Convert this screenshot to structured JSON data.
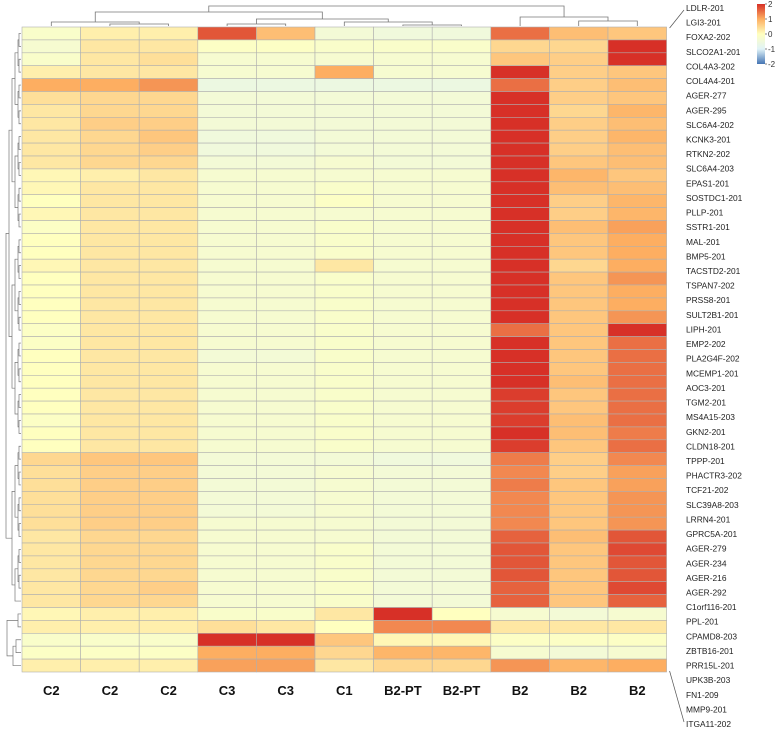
{
  "chart_data": {
    "type": "heatmap",
    "title": "",
    "columns": [
      "C2",
      "C2",
      "C2",
      "C3",
      "C3",
      "C1",
      "B2-PT",
      "B2-PT",
      "B2",
      "B2",
      "B2"
    ],
    "rows": [
      "LDLR-201",
      "LGI3-201",
      "FOXA2-202",
      "SLCO2A1-201",
      "COL4A3-202",
      "COL4A4-201",
      "AGER-277",
      "AGER-295",
      "SLC6A4-202",
      "KCNK3-201",
      "RTKN2-202",
      "SLC6A4-203",
      "EPAS1-201",
      "SOSTDC1-201",
      "PLLP-201",
      "SSTR1-201",
      "MAL-201",
      "BMP5-201",
      "TACSTD2-201",
      "TSPAN7-202",
      "PRSS8-201",
      "SULT2B1-201",
      "LIPH-201",
      "EMP2-202",
      "PLA2G4F-202",
      "MCEMP1-201",
      "AOC3-201",
      "TGM2-201",
      "MS4A15-203",
      "GKN2-201",
      "CLDN18-201",
      "TPPP-201",
      "PHACTR3-202",
      "TCF21-202",
      "SLC39A8-203",
      "LRRN4-201",
      "GPRC5A-201",
      "AGER-279",
      "AGER-234",
      "AGER-216",
      "AGER-292",
      "C1orf116-201",
      "PPL-201",
      "CPAMD8-203",
      "ZBTB16-201",
      "PRR15L-201",
      "UPK3B-203",
      "FN1-209",
      "MMP9-201",
      "ITGA11-202"
    ],
    "values": [
      [
        -0.2,
        0.2,
        0.2,
        1.7,
        0.8,
        -0.4,
        -0.5,
        -0.5,
        1.5,
        0.8,
        0.7
      ],
      [
        -0.3,
        0.3,
        0.3,
        -0.1,
        -0.1,
        -0.2,
        -0.2,
        -0.2,
        0.5,
        0.5,
        2.7
      ],
      [
        -0.2,
        0.3,
        0.4,
        -0.3,
        -0.3,
        -0.3,
        -0.3,
        -0.3,
        0.7,
        0.6,
        2.7
      ],
      [
        0.2,
        0.3,
        0.3,
        -0.3,
        -0.3,
        1.0,
        -0.3,
        -0.3,
        2.1,
        0.6,
        0.7
      ],
      [
        1.0,
        1.0,
        1.2,
        -0.6,
        -0.6,
        -0.6,
        -0.6,
        -0.6,
        1.5,
        0.6,
        0.8
      ],
      [
        0.4,
        0.5,
        0.5,
        -0.4,
        -0.4,
        -0.4,
        -0.4,
        -0.4,
        2.4,
        0.6,
        0.7
      ],
      [
        0.3,
        0.5,
        0.5,
        -0.4,
        -0.4,
        -0.4,
        -0.4,
        -0.4,
        2.6,
        0.5,
        0.9
      ],
      [
        0.3,
        0.6,
        0.6,
        -0.4,
        -0.4,
        -0.4,
        -0.4,
        -0.4,
        2.4,
        0.6,
        0.8
      ],
      [
        0.3,
        0.5,
        0.7,
        -0.5,
        -0.5,
        -0.4,
        -0.4,
        -0.4,
        2.3,
        0.6,
        0.9
      ],
      [
        0.3,
        0.5,
        0.6,
        -0.5,
        -0.5,
        -0.4,
        -0.4,
        -0.4,
        2.3,
        0.6,
        0.8
      ],
      [
        0.3,
        0.5,
        0.5,
        -0.4,
        -0.4,
        -0.3,
        -0.4,
        -0.4,
        2.3,
        0.7,
        0.8
      ],
      [
        0.1,
        0.2,
        0.3,
        -0.3,
        -0.3,
        -0.3,
        -0.3,
        -0.3,
        2.6,
        0.9,
        0.7
      ],
      [
        0.1,
        0.3,
        0.3,
        -0.3,
        -0.3,
        -0.2,
        -0.3,
        -0.3,
        2.5,
        0.8,
        0.8
      ],
      [
        0.0,
        0.3,
        0.3,
        -0.3,
        -0.3,
        -0.1,
        -0.3,
        -0.3,
        2.5,
        0.6,
        0.9
      ],
      [
        0.1,
        0.3,
        0.3,
        -0.3,
        -0.3,
        -0.3,
        -0.3,
        -0.3,
        2.5,
        0.6,
        0.9
      ],
      [
        -0.1,
        0.3,
        0.3,
        -0.3,
        -0.3,
        -0.2,
        -0.3,
        -0.3,
        2.3,
        0.8,
        1.1
      ],
      [
        0.0,
        0.3,
        0.3,
        -0.3,
        -0.3,
        -0.2,
        -0.3,
        -0.3,
        2.2,
        0.7,
        1.0
      ],
      [
        0.0,
        0.3,
        0.3,
        -0.3,
        -0.3,
        -0.2,
        -0.3,
        -0.3,
        2.3,
        0.7,
        1.0
      ],
      [
        0.1,
        0.3,
        0.3,
        -0.3,
        -0.3,
        0.3,
        -0.3,
        -0.3,
        2.4,
        0.5,
        1.0
      ],
      [
        0.0,
        0.3,
        0.3,
        -0.3,
        -0.3,
        -0.2,
        -0.3,
        -0.3,
        2.2,
        0.7,
        1.2
      ],
      [
        0.0,
        0.3,
        0.3,
        -0.3,
        -0.3,
        -0.2,
        -0.3,
        -0.3,
        2.2,
        0.7,
        1.0
      ],
      [
        0.0,
        0.3,
        0.3,
        -0.3,
        -0.3,
        -0.2,
        -0.3,
        -0.3,
        2.2,
        0.7,
        1.0
      ],
      [
        0.0,
        0.3,
        0.3,
        -0.3,
        -0.3,
        -0.2,
        -0.3,
        -0.3,
        2.2,
        0.7,
        1.2
      ],
      [
        -0.1,
        0.3,
        0.3,
        -0.3,
        -0.3,
        -0.2,
        -0.3,
        -0.3,
        1.5,
        0.7,
        2.3
      ],
      [
        -0.1,
        0.3,
        0.3,
        -0.3,
        -0.3,
        -0.2,
        -0.3,
        -0.3,
        2.1,
        0.7,
        1.5
      ],
      [
        0.0,
        0.3,
        0.3,
        -0.4,
        -0.4,
        -0.2,
        -0.3,
        -0.3,
        2.1,
        0.7,
        1.5
      ],
      [
        0.0,
        0.3,
        0.3,
        -0.3,
        -0.3,
        -0.2,
        -0.3,
        -0.3,
        2.2,
        0.7,
        1.5
      ],
      [
        0.0,
        0.3,
        0.3,
        -0.3,
        -0.3,
        -0.2,
        -0.3,
        -0.3,
        2.0,
        0.8,
        1.5
      ],
      [
        0.0,
        0.3,
        0.3,
        -0.3,
        -0.3,
        -0.2,
        -0.3,
        -0.3,
        1.9,
        0.7,
        1.5
      ],
      [
        0.0,
        0.3,
        0.3,
        -0.3,
        -0.3,
        -0.2,
        -0.3,
        -0.3,
        1.9,
        0.7,
        1.5
      ],
      [
        -0.1,
        0.3,
        0.3,
        -0.3,
        -0.3,
        -0.2,
        -0.3,
        -0.3,
        1.9,
        0.8,
        1.5
      ],
      [
        0.0,
        0.3,
        0.3,
        -0.3,
        -0.3,
        -0.2,
        -0.3,
        -0.3,
        2.0,
        0.8,
        1.4
      ],
      [
        0.0,
        0.3,
        0.3,
        -0.3,
        -0.3,
        -0.2,
        -0.3,
        -0.3,
        1.9,
        0.7,
        1.5
      ],
      [
        0.5,
        0.7,
        0.7,
        -0.4,
        -0.4,
        -0.4,
        -0.5,
        -0.5,
        1.4,
        0.6,
        1.3
      ],
      [
        0.4,
        0.6,
        0.6,
        -0.4,
        -0.4,
        -0.3,
        -0.4,
        -0.4,
        1.3,
        0.6,
        1.1
      ],
      [
        0.4,
        0.6,
        0.6,
        -0.4,
        -0.4,
        -0.3,
        -0.4,
        -0.4,
        1.4,
        0.7,
        1.1
      ],
      [
        0.4,
        0.6,
        0.6,
        -0.4,
        -0.4,
        -0.3,
        -0.4,
        -0.4,
        1.3,
        0.7,
        1.2
      ],
      [
        0.4,
        0.6,
        0.6,
        -0.4,
        -0.4,
        -0.3,
        -0.4,
        -0.4,
        1.3,
        0.7,
        1.2
      ],
      [
        0.4,
        0.6,
        0.6,
        -0.3,
        -0.3,
        -0.3,
        -0.4,
        -0.4,
        1.3,
        0.7,
        1.2
      ],
      [
        0.3,
        0.5,
        0.5,
        -0.3,
        -0.3,
        -0.3,
        -0.4,
        -0.4,
        1.6,
        0.8,
        1.7
      ],
      [
        0.3,
        0.5,
        0.5,
        -0.3,
        -0.3,
        -0.2,
        -0.4,
        -0.4,
        1.7,
        0.7,
        1.8
      ],
      [
        0.3,
        0.5,
        0.5,
        -0.3,
        -0.3,
        -0.2,
        -0.4,
        -0.4,
        1.7,
        0.7,
        1.7
      ],
      [
        0.3,
        0.5,
        0.5,
        -0.3,
        -0.3,
        -0.2,
        -0.4,
        -0.4,
        1.7,
        0.7,
        1.7
      ],
      [
        0.3,
        0.5,
        0.6,
        -0.3,
        -0.3,
        -0.2,
        -0.4,
        -0.4,
        1.6,
        0.7,
        1.8
      ],
      [
        0.3,
        0.5,
        0.5,
        -0.3,
        -0.3,
        -0.2,
        -0.4,
        -0.4,
        1.6,
        0.7,
        1.6
      ],
      [
        0.1,
        0.2,
        0.2,
        -0.2,
        -0.2,
        0.3,
        2.1,
        0.0,
        -0.3,
        -0.4,
        -0.3
      ],
      [
        0.2,
        0.2,
        0.2,
        0.4,
        0.3,
        0.0,
        1.3,
        1.3,
        0.3,
        0.3,
        0.3
      ],
      [
        -0.2,
        -0.2,
        -0.2,
        2.0,
        2.7,
        0.7,
        0.1,
        0.1,
        -0.1,
        -0.1,
        -0.1
      ],
      [
        -0.1,
        -0.1,
        -0.1,
        1.0,
        1.0,
        0.5,
        0.9,
        0.9,
        -0.3,
        -0.4,
        -0.3
      ],
      [
        0.2,
        0.2,
        0.2,
        1.1,
        1.1,
        0.3,
        0.5,
        0.5,
        1.2,
        0.9,
        1.0
      ]
    ],
    "color_scale": {
      "range": [
        -2,
        2
      ],
      "ticks": [
        "2",
        "1",
        "0",
        "-1",
        "-2"
      ],
      "colors": {
        "low": "#4575b4",
        "mid_low": "#e0f3f8",
        "mid": "#ffffbf",
        "mid_high": "#fdae61",
        "high": "#d73027"
      }
    },
    "legend_position": "top-right"
  }
}
